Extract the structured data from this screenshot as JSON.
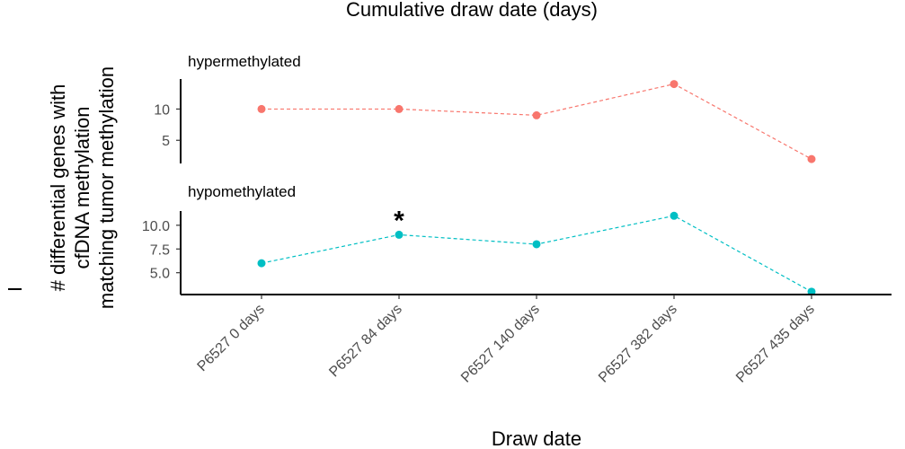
{
  "chart_data": {
    "type": "line",
    "title": "Cumulative draw date (days)",
    "xlabel": "Draw date",
    "ylabel": [
      "# differential genes with",
      "cfDNA methylation",
      "matching tumor methylation"
    ],
    "categories": [
      "P6527 0 days",
      "P6527 84 days",
      "P6527 140 days",
      "P6527 382 days",
      "P6527 435 days"
    ],
    "grid": false,
    "legend": "none",
    "panels": [
      {
        "name": "hypermethylated",
        "color": "#F8766D",
        "values": [
          10,
          10,
          9,
          14,
          2
        ],
        "ylim": [
          1.3,
          14.8
        ],
        "yticks": [
          5,
          10
        ],
        "ytick_labels": [
          "5",
          "10"
        ],
        "annotations": []
      },
      {
        "name": "hypomethylated",
        "color": "#00BFC4",
        "values": [
          6,
          9,
          8,
          11,
          3
        ],
        "ylim": [
          2.7,
          11.5
        ],
        "yticks": [
          5.0,
          7.5,
          10.0
        ],
        "ytick_labels": [
          "5.0",
          "7.5",
          "10.0"
        ],
        "annotations": [
          {
            "category_index": 1,
            "text": "*"
          }
        ]
      }
    ]
  }
}
